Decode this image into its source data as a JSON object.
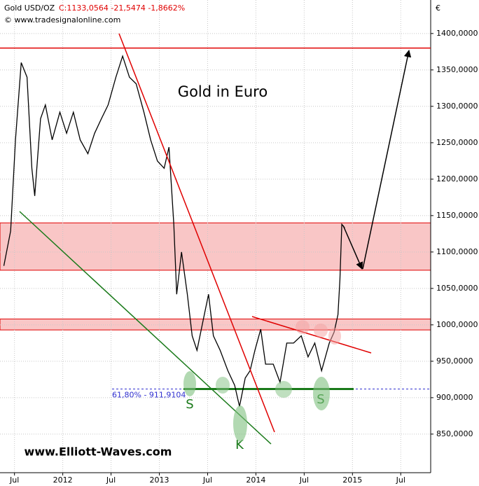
{
  "chart_data": {
    "type": "line",
    "header_symbol": "Gold USD/OZ",
    "header_quote": "C:1133,0564 -21,5474 -1,8662%",
    "copyright": "© www.tradesignalonline.com",
    "title": "Gold in Euro",
    "watermark": "www.Elliott-Waves.com",
    "currency": "€",
    "fib_level": 911.9104,
    "fib_label": "61,80% - 911,9104",
    "resistance_level": 1380,
    "zones": [
      [
        1075,
        1140
      ],
      [
        993,
        1008
      ]
    ],
    "pattern_labels": [
      "S",
      "K",
      "S"
    ],
    "color": "#000000",
    "x": [
      2011.39,
      2011.46,
      2011.51,
      2011.57,
      2011.63,
      2011.68,
      2011.71,
      2011.77,
      2011.82,
      2011.89,
      2011.97,
      2012.04,
      2012.11,
      2012.18,
      2012.26,
      2012.33,
      2012.4,
      2012.47,
      2012.55,
      2012.62,
      2012.69,
      2012.76,
      2012.84,
      2012.91,
      2012.98,
      2013.05,
      2013.1,
      2013.15,
      2013.18,
      2013.23,
      2013.29,
      2013.34,
      2013.39,
      2013.45,
      2013.51,
      2013.56,
      2013.63,
      2013.71,
      2013.78,
      2013.83,
      2013.89,
      2013.94,
      2013.99,
      2014.05,
      2014.1,
      2014.18,
      2014.25,
      2014.32,
      2014.39,
      2014.47,
      2014.54,
      2014.61,
      2014.68,
      2014.76,
      2014.81,
      2014.85,
      2014.87,
      2014.89,
      2014.92
    ],
    "values": [
      1081,
      1129,
      1254,
      1360,
      1340,
      1215,
      1177,
      1283,
      1302,
      1254,
      1292,
      1263,
      1292,
      1254,
      1235,
      1263,
      1283,
      1302,
      1340,
      1369,
      1340,
      1331,
      1292,
      1254,
      1225,
      1215,
      1244,
      1138,
      1042,
      1100,
      1042,
      985,
      965,
      1004,
      1042,
      985,
      965,
      937,
      917,
      888,
      927,
      937,
      965,
      994,
      946,
      946,
      921,
      975,
      975,
      985,
      956,
      975,
      937,
      975,
      990,
      1014,
      1062,
      1138,
      1133
    ],
    "xlim": [
      2011.35,
      2015.81
    ],
    "ylim": [
      797,
      1446
    ],
    "xticks": [
      {
        "value": 2011.5,
        "label": "Jul"
      },
      {
        "value": 2012,
        "label": "2012"
      },
      {
        "value": 2012.5,
        "label": "Jul"
      },
      {
        "value": 2013,
        "label": "2013"
      },
      {
        "value": 2013.5,
        "label": "Jul"
      },
      {
        "value": 2014,
        "label": "2014"
      },
      {
        "value": 2014.5,
        "label": "Jul"
      },
      {
        "value": 2015,
        "label": "2015"
      },
      {
        "value": 2015.5,
        "label": "Jul"
      }
    ],
    "yticks": [
      {
        "value": 850,
        "label": "850,0000"
      },
      {
        "value": 900,
        "label": "900,0000"
      },
      {
        "value": 950,
        "label": "950,0000"
      },
      {
        "value": 1000,
        "label": "1000,0000"
      },
      {
        "value": 1050,
        "label": "1050,0000"
      },
      {
        "value": 1100,
        "label": "1100,0000"
      },
      {
        "value": 1150,
        "label": "1150,0000"
      },
      {
        "value": 1200,
        "label": "1200,0000"
      },
      {
        "value": 1250,
        "label": "1250,0000"
      },
      {
        "value": 1300,
        "label": "1300,0000"
      },
      {
        "value": 1350,
        "label": "1350,0000"
      },
      {
        "value": 1400,
        "label": "1400,0000"
      }
    ],
    "grid": true
  }
}
